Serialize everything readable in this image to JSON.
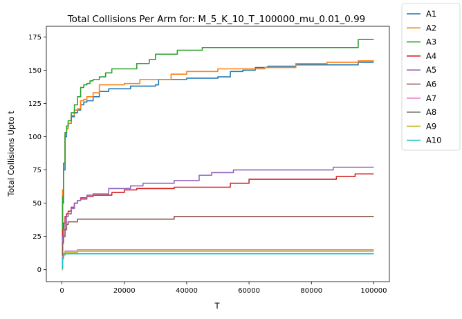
{
  "chart_data": {
    "type": "line",
    "title": "Total Collisions Per Arm for: M_5_K_10_T_100000_mu_0.01_0.99",
    "xlabel": "T",
    "ylabel": "Total Collisions Upto t",
    "xlim": [
      -5000,
      105000
    ],
    "ylim": [
      -9,
      183
    ],
    "xticks": [
      0,
      20000,
      40000,
      60000,
      80000,
      100000
    ],
    "yticks": [
      0,
      25,
      50,
      75,
      100,
      125,
      150,
      175
    ],
    "legend_position": "outside-top-right",
    "grid": false,
    "series": [
      {
        "name": "A1",
        "color": "#1f77b4",
        "x": [
          0,
          200,
          500,
          1000,
          1500,
          2000,
          3000,
          4000,
          5000,
          6000,
          7000,
          8000,
          10000,
          12000,
          15000,
          18000,
          22000,
          26000,
          30000,
          31000,
          40000,
          50000,
          54000,
          58000,
          62000,
          66000,
          70000,
          75000,
          80000,
          95000,
          100000
        ],
        "y": [
          3,
          50,
          75,
          100,
          106,
          110,
          115,
          118,
          120,
          124,
          126,
          127,
          130,
          134,
          136,
          136,
          138,
          138,
          139,
          143,
          144,
          145,
          149,
          150,
          152,
          153,
          153,
          154,
          154,
          156,
          156
        ]
      },
      {
        "name": "A2",
        "color": "#ff7f0e",
        "x": [
          0,
          200,
          500,
          1000,
          1500,
          2000,
          3000,
          4000,
          5000,
          6000,
          7000,
          8000,
          10000,
          12000,
          15000,
          20000,
          25000,
          30000,
          35000,
          40000,
          50000,
          65000,
          75000,
          85000,
          95000,
          100000
        ],
        "y": [
          5,
          60,
          80,
          103,
          106,
          110,
          116,
          120,
          121,
          127,
          128,
          130,
          133,
          139,
          139,
          140,
          143,
          143,
          147,
          149,
          151,
          152,
          155,
          156,
          157,
          157
        ]
      },
      {
        "name": "A3",
        "color": "#2ca02c",
        "x": [
          0,
          200,
          500,
          1000,
          1500,
          2000,
          3000,
          4000,
          5000,
          6000,
          7000,
          8000,
          9000,
          10000,
          12000,
          14000,
          16000,
          20000,
          24000,
          28000,
          30000,
          35000,
          37000,
          45000,
          55000,
          94000,
          95000,
          100000
        ],
        "y": [
          2,
          55,
          80,
          103,
          108,
          112,
          118,
          124,
          130,
          137,
          139,
          140,
          142,
          143,
          145,
          148,
          151,
          151,
          155,
          158,
          162,
          162,
          165,
          167,
          167,
          167,
          173,
          173
        ]
      },
      {
        "name": "A4",
        "color": "#d62728",
        "x": [
          0,
          200,
          500,
          1000,
          1500,
          2000,
          3000,
          4000,
          5000,
          6000,
          8000,
          10000,
          12000,
          16000,
          20000,
          24000,
          30000,
          36000,
          42000,
          50000,
          54000,
          60000,
          70000,
          75000,
          88000,
          94000,
          100000
        ],
        "y": [
          14,
          30,
          35,
          40,
          42,
          44,
          47,
          50,
          52,
          54,
          55,
          56,
          56,
          58,
          60,
          61,
          61,
          62,
          62,
          62,
          65,
          68,
          68,
          68,
          70,
          72,
          72
        ]
      },
      {
        "name": "A5",
        "color": "#9467bd",
        "x": [
          0,
          200,
          500,
          1000,
          1500,
          2000,
          3000,
          4000,
          5000,
          6000,
          8000,
          10000,
          12000,
          15000,
          18000,
          22000,
          26000,
          30000,
          36000,
          40000,
          44000,
          48000,
          52000,
          55000,
          66000,
          76000,
          87000,
          100000
        ],
        "y": [
          14,
          25,
          30,
          35,
          40,
          42,
          46,
          50,
          52,
          53,
          56,
          57,
          57,
          61,
          61,
          63,
          65,
          65,
          67,
          67,
          71,
          73,
          73,
          75,
          75,
          75,
          77,
          77
        ]
      },
      {
        "name": "A6",
        "color": "#8c564b",
        "x": [
          0,
          200,
          500,
          1000,
          1500,
          2000,
          3000,
          5000,
          8000,
          15000,
          30000,
          36000,
          50000,
          100000
        ],
        "y": [
          10,
          20,
          25,
          30,
          34,
          36,
          36,
          38,
          38,
          38,
          38,
          40,
          40,
          40
        ]
      },
      {
        "name": "A7",
        "color": "#e377c2",
        "x": [
          0,
          200,
          500,
          1000,
          5000,
          100000
        ],
        "y": [
          2,
          10,
          12,
          14,
          15,
          15
        ]
      },
      {
        "name": "A8",
        "color": "#7f7f7f",
        "x": [
          0,
          200,
          500,
          1000,
          5000,
          100000
        ],
        "y": [
          1,
          9,
          11,
          13,
          14,
          14
        ]
      },
      {
        "name": "A9",
        "color": "#bcbd22",
        "x": [
          0,
          200,
          500,
          1000,
          5000,
          100000
        ],
        "y": [
          0,
          8,
          11,
          13,
          14,
          14
        ]
      },
      {
        "name": "A10",
        "color": "#17becf",
        "x": [
          0,
          200,
          500,
          100000
        ],
        "y": [
          1,
          9,
          12,
          12
        ]
      }
    ]
  }
}
